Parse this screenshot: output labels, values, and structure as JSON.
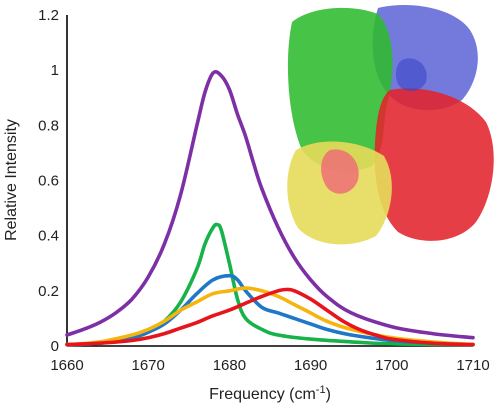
{
  "chart_data": {
    "type": "line",
    "title": "",
    "xlabel": "Frequency (cm",
    "xlabel_sup": "-1",
    "xlabel_close": ")",
    "ylabel": "Relative Intensity",
    "xlim": [
      1660,
      1710
    ],
    "ylim": [
      0,
      1.2
    ],
    "x_ticks": [
      1660,
      1670,
      1680,
      1690,
      1700,
      1710
    ],
    "y_ticks": [
      0,
      0.2,
      0.4,
      0.6,
      0.8,
      1,
      1.2
    ],
    "grid": false,
    "legend": "none",
    "inset": "protein-structure-ribbon-image",
    "series": [
      {
        "color": "#7d2fa6",
        "x": [
          1660,
          1662,
          1664,
          1666,
          1668,
          1670,
          1672,
          1674,
          1676,
          1677,
          1678,
          1679,
          1680,
          1681,
          1682,
          1683,
          1684,
          1686,
          1688,
          1690,
          1692,
          1695,
          1700,
          1705,
          1710
        ],
        "y": [
          0.04,
          0.06,
          0.085,
          0.12,
          0.17,
          0.25,
          0.37,
          0.55,
          0.8,
          0.92,
          0.99,
          0.98,
          0.93,
          0.84,
          0.76,
          0.66,
          0.57,
          0.43,
          0.32,
          0.24,
          0.18,
          0.12,
          0.07,
          0.045,
          0.03
        ]
      },
      {
        "color": "#17b24a",
        "x": [
          1660,
          1664,
          1668,
          1670,
          1672,
          1674,
          1676,
          1677,
          1678,
          1678.5,
          1679,
          1680,
          1681,
          1682,
          1684,
          1686,
          1690,
          1695,
          1700,
          1710
        ],
        "y": [
          0.005,
          0.01,
          0.03,
          0.05,
          0.09,
          0.16,
          0.28,
          0.37,
          0.43,
          0.44,
          0.42,
          0.3,
          0.17,
          0.1,
          0.06,
          0.04,
          0.025,
          0.015,
          0.008,
          0.005
        ]
      },
      {
        "color": "#1f77c8",
        "x": [
          1660,
          1664,
          1668,
          1670,
          1672,
          1674,
          1676,
          1678,
          1680,
          1681,
          1682,
          1684,
          1686,
          1688,
          1690,
          1692,
          1695,
          1700,
          1705,
          1710
        ],
        "y": [
          0.005,
          0.01,
          0.03,
          0.05,
          0.08,
          0.13,
          0.19,
          0.24,
          0.255,
          0.24,
          0.2,
          0.14,
          0.12,
          0.1,
          0.08,
          0.06,
          0.04,
          0.02,
          0.01,
          0.005
        ]
      },
      {
        "color": "#f5b50e",
        "x": [
          1660,
          1664,
          1668,
          1670,
          1672,
          1674,
          1676,
          1678,
          1680,
          1682,
          1684,
          1686,
          1688,
          1690,
          1692,
          1695,
          1700,
          1705,
          1710
        ],
        "y": [
          0.005,
          0.015,
          0.04,
          0.06,
          0.09,
          0.13,
          0.16,
          0.19,
          0.2,
          0.21,
          0.2,
          0.18,
          0.15,
          0.12,
          0.09,
          0.06,
          0.03,
          0.015,
          0.005
        ]
      },
      {
        "color": "#e8141c",
        "x": [
          1660,
          1664,
          1668,
          1670,
          1672,
          1674,
          1676,
          1678,
          1680,
          1682,
          1684,
          1686,
          1687,
          1688,
          1690,
          1692,
          1694,
          1696,
          1698,
          1700,
          1705,
          1710
        ],
        "y": [
          0.005,
          0.01,
          0.02,
          0.03,
          0.045,
          0.065,
          0.085,
          0.11,
          0.13,
          0.155,
          0.18,
          0.2,
          0.205,
          0.2,
          0.17,
          0.13,
          0.09,
          0.06,
          0.04,
          0.025,
          0.01,
          0.005
        ]
      }
    ]
  }
}
